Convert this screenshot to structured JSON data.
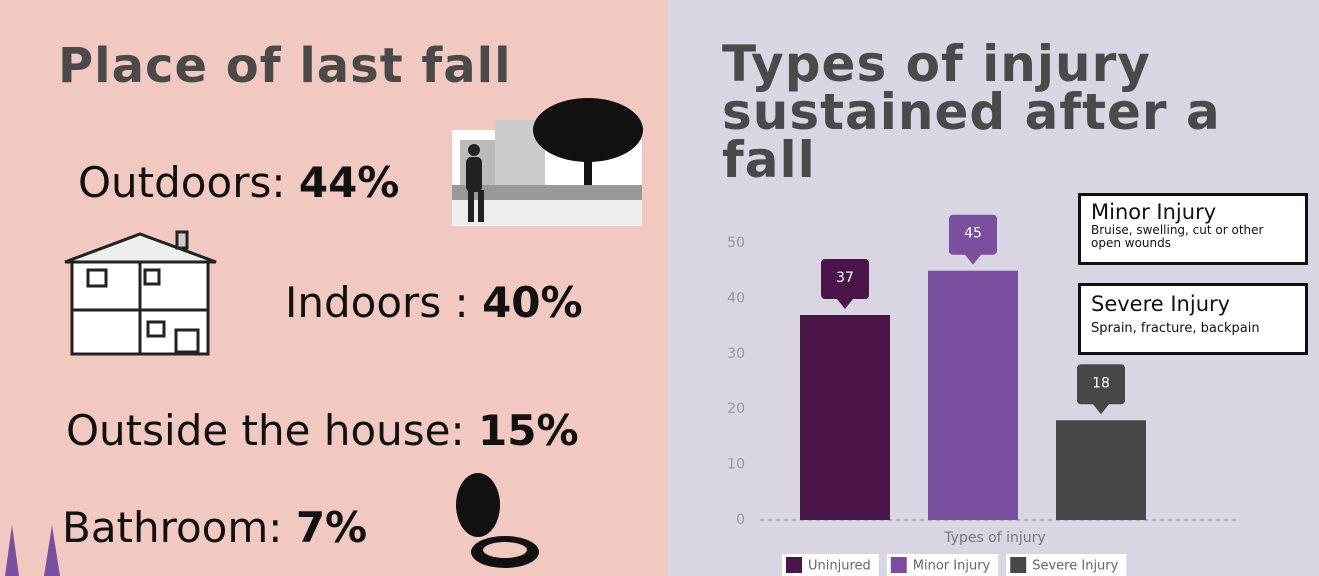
{
  "left_panel": {
    "title": "Place of last fall",
    "items": [
      {
        "label": "Outdoors:",
        "value": "44%"
      },
      {
        "label": "Indoors :",
        "value": "40%"
      },
      {
        "label": "Outside the house:",
        "value": "15%"
      },
      {
        "label": "Bathroom:",
        "value": "7%"
      }
    ]
  },
  "chart_data": {
    "type": "bar",
    "title": [
      "Types of injury",
      "sustained after a fall"
    ],
    "x_label": "Types of injury",
    "categories": [
      null
    ],
    "series": [
      {
        "name": "Uninjured",
        "color": "#4a1548",
        "values": [
          37
        ]
      },
      {
        "name": "Minor Injury",
        "color": "#7b4fa0",
        "values": [
          45
        ]
      },
      {
        "name": "Severe Injury",
        "color": "#474747",
        "values": [
          18
        ]
      }
    ],
    "ylim": [
      0,
      50
    ],
    "yticks": [
      0,
      10,
      20,
      30,
      40,
      50
    ],
    "grid": false,
    "legend": "bottom",
    "annotations": [
      {
        "title": "Minor Injury",
        "text": "Bruise, swelling, cut or other open wounds"
      },
      {
        "title": "Severe Injury",
        "text": "Sprain, fracture, backpain"
      }
    ]
  }
}
